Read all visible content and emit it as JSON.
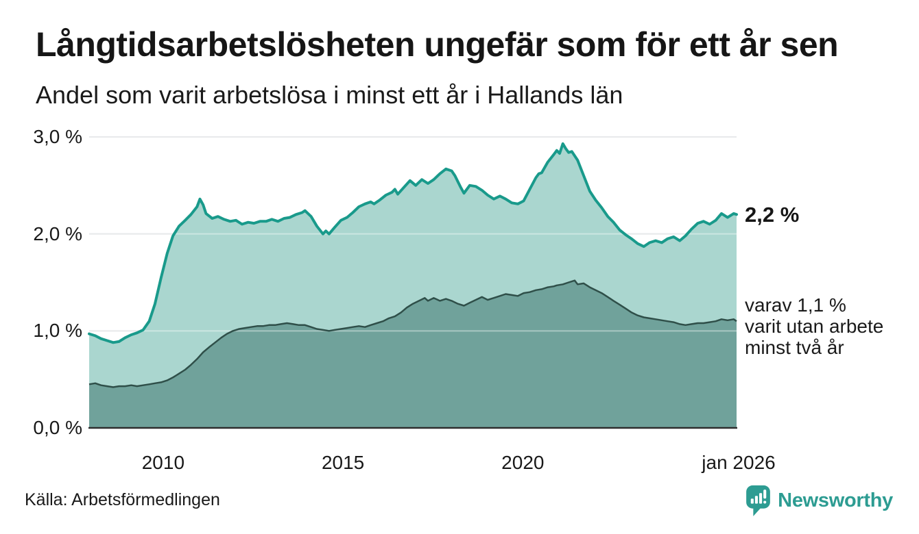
{
  "header": {
    "title": "Långtidsarbetslösheten ungefär som för ett år sen",
    "subtitle": "Andel som varit arbetslösa i minst ett år i Hallands län"
  },
  "annotations": {
    "total_label": "2,2 %",
    "two_year_label": "varav 1,1 %\nvarit utan arbete\nminst två år"
  },
  "source": {
    "text": "Källa: Arbetsförmedlingen"
  },
  "branding": {
    "name": "Newsworthy",
    "color": "#2d9c92",
    "icon": "newsworthy-bubble-chart-icon"
  },
  "colors": {
    "line_total": "#199a8b",
    "fill_total": "#aad6cf",
    "line_two_year": "#2f4f49",
    "fill_two_year": "#70a29b",
    "gridline": "#d9dade",
    "axis": "#2e2e2e",
    "text": "#191919"
  },
  "chart_data": {
    "type": "area",
    "title": "Långtidsarbetslösheten ungefär som för ett år sen",
    "subtitle": "Andel som varit arbetslösa i minst ett år i Hallands län",
    "xlabel": "",
    "ylabel": "",
    "ylim": [
      0,
      3
    ],
    "xlim": [
      2008,
      2026.04
    ],
    "grid": true,
    "legend_position": "end-of-line labels",
    "y_ticks": [
      {
        "value": 0,
        "label": "0,0 %"
      },
      {
        "value": 1,
        "label": "1,0 %"
      },
      {
        "value": 2,
        "label": "2,0 %"
      },
      {
        "value": 3,
        "label": "3,0 %"
      }
    ],
    "x_ticks": [
      {
        "value": 2010,
        "label": "2010"
      },
      {
        "value": 2015,
        "label": "2015"
      },
      {
        "value": 2020,
        "label": "2020"
      },
      {
        "value": 2026,
        "label": "jan 2026"
      }
    ],
    "series": [
      {
        "name": "Andel som varit arbetslösa i minst ett år",
        "end_label": "2,2 %",
        "end_value": 2.2,
        "color": "#199a8b",
        "fill": "#aad6cf",
        "points": [
          [
            2008.0,
            0.97
          ],
          [
            2008.17,
            0.95
          ],
          [
            2008.33,
            0.92
          ],
          [
            2008.5,
            0.9
          ],
          [
            2008.67,
            0.88
          ],
          [
            2008.83,
            0.89
          ],
          [
            2009.0,
            0.93
          ],
          [
            2009.17,
            0.96
          ],
          [
            2009.33,
            0.98
          ],
          [
            2009.5,
            1.01
          ],
          [
            2009.67,
            1.1
          ],
          [
            2009.83,
            1.28
          ],
          [
            2010.0,
            1.55
          ],
          [
            2010.17,
            1.8
          ],
          [
            2010.33,
            1.98
          ],
          [
            2010.5,
            2.08
          ],
          [
            2010.67,
            2.14
          ],
          [
            2010.83,
            2.2
          ],
          [
            2011.0,
            2.28
          ],
          [
            2011.08,
            2.36
          ],
          [
            2011.17,
            2.3
          ],
          [
            2011.25,
            2.21
          ],
          [
            2011.42,
            2.16
          ],
          [
            2011.58,
            2.18
          ],
          [
            2011.75,
            2.15
          ],
          [
            2011.92,
            2.13
          ],
          [
            2012.08,
            2.14
          ],
          [
            2012.25,
            2.1
          ],
          [
            2012.42,
            2.12
          ],
          [
            2012.58,
            2.11
          ],
          [
            2012.75,
            2.13
          ],
          [
            2012.92,
            2.13
          ],
          [
            2013.08,
            2.15
          ],
          [
            2013.25,
            2.13
          ],
          [
            2013.42,
            2.16
          ],
          [
            2013.58,
            2.17
          ],
          [
            2013.75,
            2.2
          ],
          [
            2013.92,
            2.22
          ],
          [
            2014.0,
            2.24
          ],
          [
            2014.17,
            2.18
          ],
          [
            2014.33,
            2.08
          ],
          [
            2014.5,
            2.0
          ],
          [
            2014.58,
            2.03
          ],
          [
            2014.67,
            2.0
          ],
          [
            2014.83,
            2.07
          ],
          [
            2015.0,
            2.14
          ],
          [
            2015.17,
            2.17
          ],
          [
            2015.33,
            2.22
          ],
          [
            2015.5,
            2.28
          ],
          [
            2015.67,
            2.31
          ],
          [
            2015.83,
            2.33
          ],
          [
            2015.92,
            2.31
          ],
          [
            2016.08,
            2.35
          ],
          [
            2016.25,
            2.4
          ],
          [
            2016.42,
            2.43
          ],
          [
            2016.5,
            2.46
          ],
          [
            2016.58,
            2.41
          ],
          [
            2016.75,
            2.48
          ],
          [
            2016.92,
            2.55
          ],
          [
            2017.08,
            2.5
          ],
          [
            2017.25,
            2.56
          ],
          [
            2017.42,
            2.52
          ],
          [
            2017.58,
            2.56
          ],
          [
            2017.75,
            2.62
          ],
          [
            2017.92,
            2.67
          ],
          [
            2018.08,
            2.65
          ],
          [
            2018.17,
            2.6
          ],
          [
            2018.33,
            2.48
          ],
          [
            2018.42,
            2.42
          ],
          [
            2018.58,
            2.5
          ],
          [
            2018.75,
            2.49
          ],
          [
            2018.92,
            2.45
          ],
          [
            2019.08,
            2.4
          ],
          [
            2019.25,
            2.36
          ],
          [
            2019.42,
            2.39
          ],
          [
            2019.58,
            2.36
          ],
          [
            2019.75,
            2.32
          ],
          [
            2019.92,
            2.31
          ],
          [
            2020.08,
            2.34
          ],
          [
            2020.25,
            2.46
          ],
          [
            2020.42,
            2.58
          ],
          [
            2020.5,
            2.62
          ],
          [
            2020.58,
            2.63
          ],
          [
            2020.75,
            2.74
          ],
          [
            2020.92,
            2.82
          ],
          [
            2021.0,
            2.86
          ],
          [
            2021.08,
            2.83
          ],
          [
            2021.17,
            2.93
          ],
          [
            2021.25,
            2.88
          ],
          [
            2021.33,
            2.84
          ],
          [
            2021.42,
            2.85
          ],
          [
            2021.58,
            2.76
          ],
          [
            2021.75,
            2.6
          ],
          [
            2021.92,
            2.44
          ],
          [
            2022.08,
            2.35
          ],
          [
            2022.25,
            2.27
          ],
          [
            2022.42,
            2.18
          ],
          [
            2022.58,
            2.12
          ],
          [
            2022.75,
            2.04
          ],
          [
            2022.92,
            1.99
          ],
          [
            2023.08,
            1.95
          ],
          [
            2023.25,
            1.9
          ],
          [
            2023.42,
            1.87
          ],
          [
            2023.58,
            1.91
          ],
          [
            2023.75,
            1.93
          ],
          [
            2023.92,
            1.91
          ],
          [
            2024.08,
            1.95
          ],
          [
            2024.25,
            1.97
          ],
          [
            2024.42,
            1.93
          ],
          [
            2024.58,
            1.98
          ],
          [
            2024.75,
            2.05
          ],
          [
            2024.92,
            2.11
          ],
          [
            2025.08,
            2.13
          ],
          [
            2025.25,
            2.1
          ],
          [
            2025.42,
            2.14
          ],
          [
            2025.58,
            2.21
          ],
          [
            2025.75,
            2.17
          ],
          [
            2025.92,
            2.21
          ],
          [
            2026.0,
            2.2
          ]
        ]
      },
      {
        "name": "varav varit utan arbete minst två år",
        "end_label": "varav 1,1 % varit utan arbete minst två år",
        "end_value": 1.1,
        "color": "#2f4f49",
        "fill": "#70a29b",
        "points": [
          [
            2008.0,
            0.45
          ],
          [
            2008.17,
            0.46
          ],
          [
            2008.33,
            0.44
          ],
          [
            2008.5,
            0.43
          ],
          [
            2008.67,
            0.42
          ],
          [
            2008.83,
            0.43
          ],
          [
            2009.0,
            0.43
          ],
          [
            2009.17,
            0.44
          ],
          [
            2009.33,
            0.43
          ],
          [
            2009.5,
            0.44
          ],
          [
            2009.67,
            0.45
          ],
          [
            2009.83,
            0.46
          ],
          [
            2010.0,
            0.47
          ],
          [
            2010.17,
            0.49
          ],
          [
            2010.33,
            0.52
          ],
          [
            2010.5,
            0.56
          ],
          [
            2010.67,
            0.6
          ],
          [
            2010.83,
            0.65
          ],
          [
            2011.0,
            0.71
          ],
          [
            2011.17,
            0.78
          ],
          [
            2011.33,
            0.83
          ],
          [
            2011.5,
            0.88
          ],
          [
            2011.67,
            0.93
          ],
          [
            2011.83,
            0.97
          ],
          [
            2012.0,
            1.0
          ],
          [
            2012.17,
            1.02
          ],
          [
            2012.33,
            1.03
          ],
          [
            2012.5,
            1.04
          ],
          [
            2012.67,
            1.05
          ],
          [
            2012.83,
            1.05
          ],
          [
            2013.0,
            1.06
          ],
          [
            2013.17,
            1.06
          ],
          [
            2013.33,
            1.07
          ],
          [
            2013.5,
            1.08
          ],
          [
            2013.67,
            1.07
          ],
          [
            2013.83,
            1.06
          ],
          [
            2014.0,
            1.06
          ],
          [
            2014.17,
            1.04
          ],
          [
            2014.33,
            1.02
          ],
          [
            2014.5,
            1.01
          ],
          [
            2014.67,
            1.0
          ],
          [
            2014.83,
            1.01
          ],
          [
            2015.0,
            1.02
          ],
          [
            2015.17,
            1.03
          ],
          [
            2015.33,
            1.04
          ],
          [
            2015.5,
            1.05
          ],
          [
            2015.67,
            1.04
          ],
          [
            2015.83,
            1.06
          ],
          [
            2016.0,
            1.08
          ],
          [
            2016.17,
            1.1
          ],
          [
            2016.33,
            1.13
          ],
          [
            2016.5,
            1.15
          ],
          [
            2016.67,
            1.19
          ],
          [
            2016.83,
            1.24
          ],
          [
            2017.0,
            1.28
          ],
          [
            2017.17,
            1.31
          ],
          [
            2017.33,
            1.34
          ],
          [
            2017.42,
            1.31
          ],
          [
            2017.58,
            1.34
          ],
          [
            2017.75,
            1.31
          ],
          [
            2017.92,
            1.33
          ],
          [
            2018.08,
            1.31
          ],
          [
            2018.25,
            1.28
          ],
          [
            2018.42,
            1.26
          ],
          [
            2018.58,
            1.29
          ],
          [
            2018.75,
            1.32
          ],
          [
            2018.92,
            1.35
          ],
          [
            2019.08,
            1.32
          ],
          [
            2019.25,
            1.34
          ],
          [
            2019.42,
            1.36
          ],
          [
            2019.58,
            1.38
          ],
          [
            2019.75,
            1.37
          ],
          [
            2019.92,
            1.36
          ],
          [
            2020.08,
            1.39
          ],
          [
            2020.25,
            1.4
          ],
          [
            2020.42,
            1.42
          ],
          [
            2020.58,
            1.43
          ],
          [
            2020.75,
            1.45
          ],
          [
            2020.92,
            1.46
          ],
          [
            2021.0,
            1.47
          ],
          [
            2021.17,
            1.48
          ],
          [
            2021.33,
            1.5
          ],
          [
            2021.5,
            1.52
          ],
          [
            2021.58,
            1.48
          ],
          [
            2021.75,
            1.49
          ],
          [
            2021.92,
            1.45
          ],
          [
            2022.08,
            1.42
          ],
          [
            2022.25,
            1.39
          ],
          [
            2022.42,
            1.35
          ],
          [
            2022.58,
            1.31
          ],
          [
            2022.75,
            1.27
          ],
          [
            2022.92,
            1.23
          ],
          [
            2023.08,
            1.19
          ],
          [
            2023.25,
            1.16
          ],
          [
            2023.42,
            1.14
          ],
          [
            2023.58,
            1.13
          ],
          [
            2023.75,
            1.12
          ],
          [
            2023.92,
            1.11
          ],
          [
            2024.08,
            1.1
          ],
          [
            2024.25,
            1.09
          ],
          [
            2024.42,
            1.07
          ],
          [
            2024.58,
            1.06
          ],
          [
            2024.75,
            1.07
          ],
          [
            2024.92,
            1.08
          ],
          [
            2025.08,
            1.08
          ],
          [
            2025.25,
            1.09
          ],
          [
            2025.42,
            1.1
          ],
          [
            2025.58,
            1.12
          ],
          [
            2025.75,
            1.11
          ],
          [
            2025.92,
            1.12
          ],
          [
            2026.0,
            1.1
          ]
        ]
      }
    ]
  }
}
